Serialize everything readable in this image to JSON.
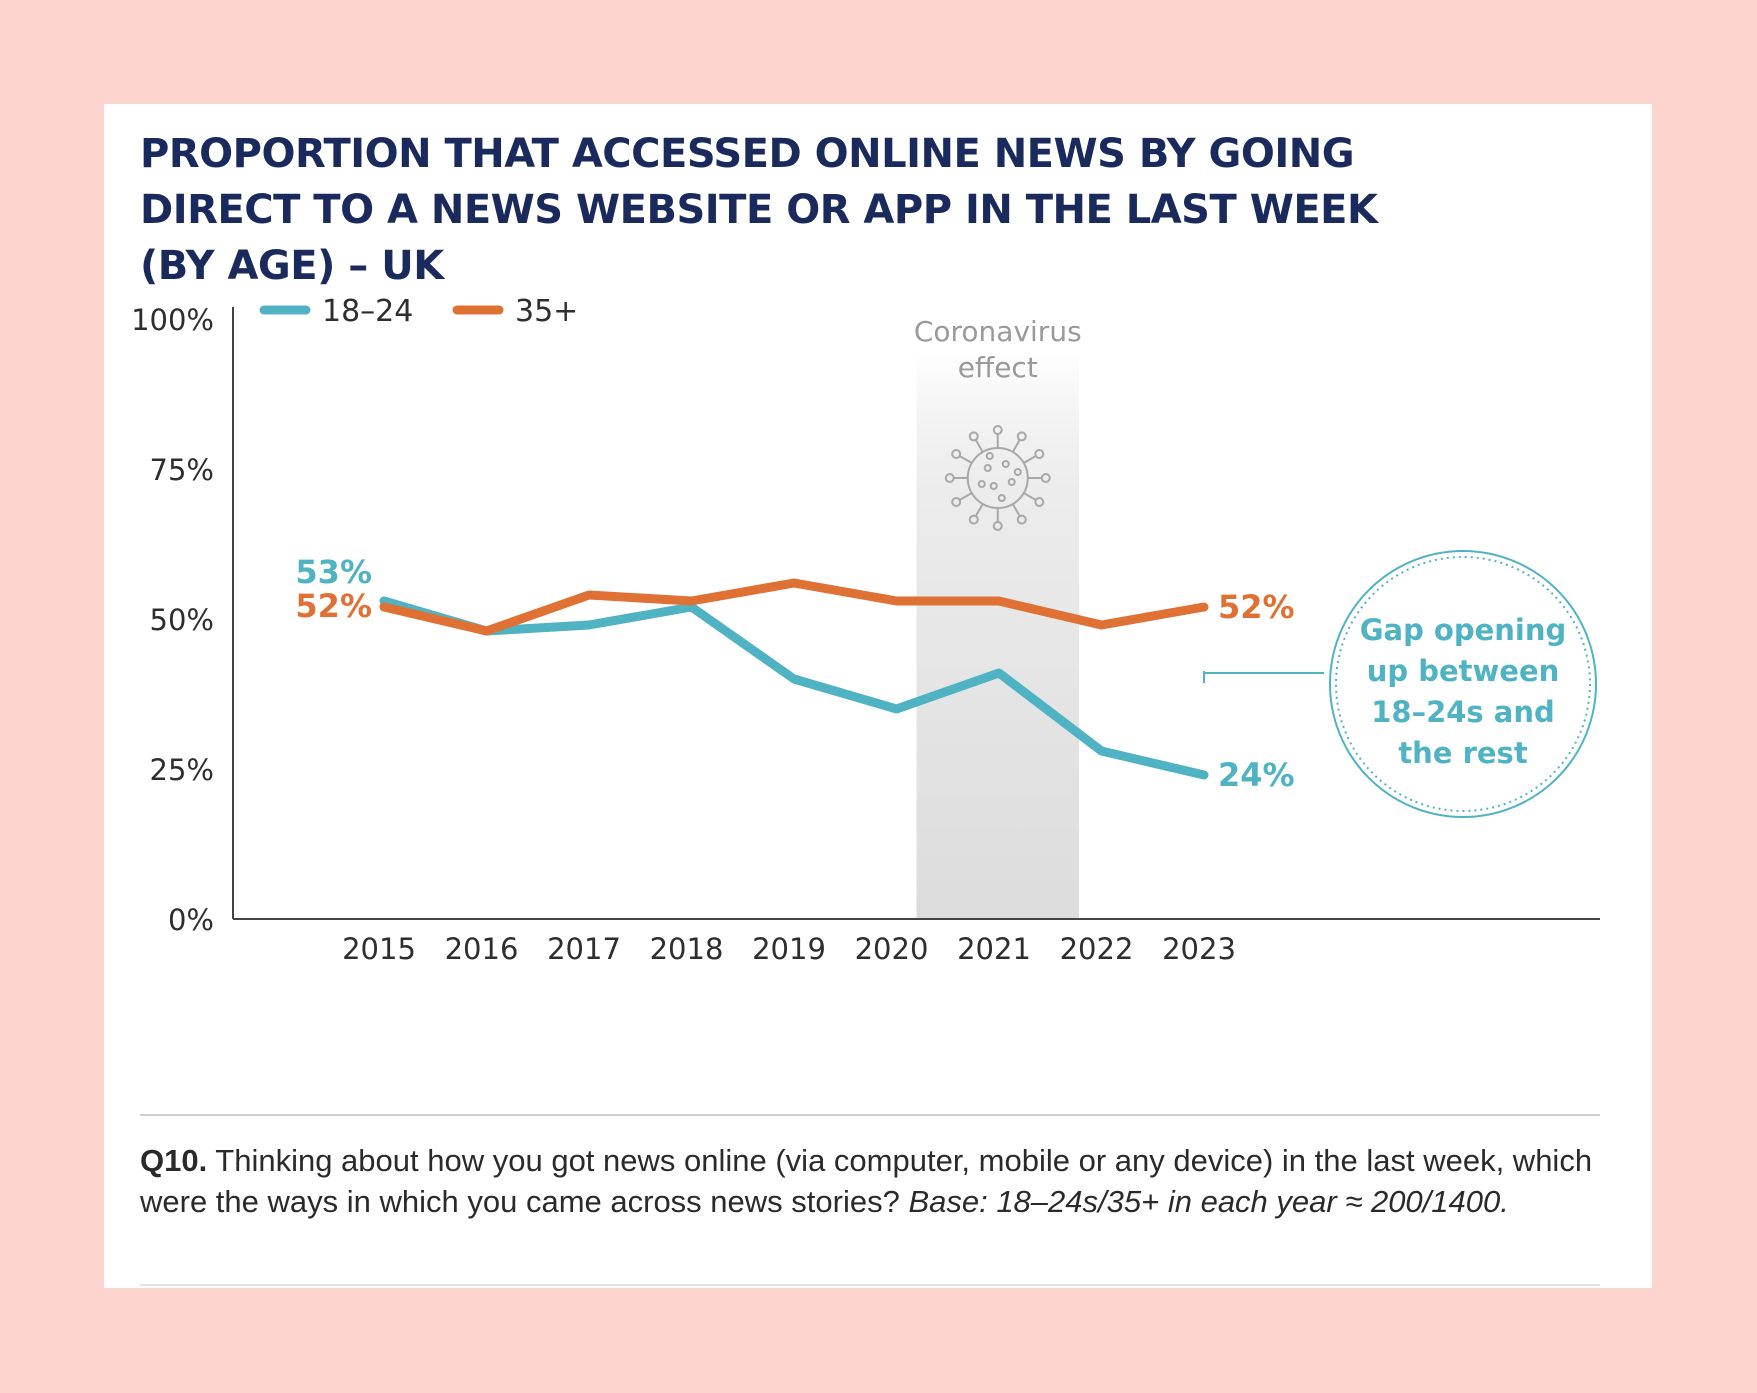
{
  "chart_data": {
    "type": "line",
    "title_lines": [
      "PROPORTION THAT ACCESSED ONLINE NEWS BY GOING",
      "DIRECT TO A NEWS WEBSITE OR APP IN THE LAST WEEK",
      "(BY AGE) – UK"
    ],
    "categories": [
      "2015",
      "2016",
      "2017",
      "2018",
      "2019",
      "2020",
      "2021",
      "2022",
      "2023"
    ],
    "y_ticks": [
      "0%",
      "25%",
      "50%",
      "75%",
      "100%"
    ],
    "ylim": [
      0,
      100
    ],
    "legend_position": "top-left",
    "series": [
      {
        "name": "18–24",
        "color": "#4fb3c4",
        "values": [
          53,
          48,
          49,
          52,
          40,
          35,
          41,
          28,
          24
        ],
        "start_label": "53%",
        "end_label": "24%"
      },
      {
        "name": "35+",
        "color": "#e07135",
        "values": [
          52,
          48,
          54,
          53,
          56,
          53,
          53,
          49,
          52
        ],
        "start_label": "52%",
        "end_label": "52%"
      }
    ],
    "highlight_band": {
      "from": "2020",
      "to": "2021",
      "label_lines": [
        "Coronavirus",
        "effect"
      ],
      "icon": "virus-icon"
    },
    "annotation": {
      "lines": [
        "Gap opening",
        "up between",
        "18–24s and",
        "the rest"
      ],
      "color": "#4fb3c4"
    }
  },
  "footer": {
    "question_id": "Q10.",
    "question_text": " Thinking about how you got news online (via computer, mobile or any device) in the last week, which were the ways in which you came across news stories? ",
    "base_text": "Base: 18–24s/35+ in each year ≈ 200/1400."
  }
}
